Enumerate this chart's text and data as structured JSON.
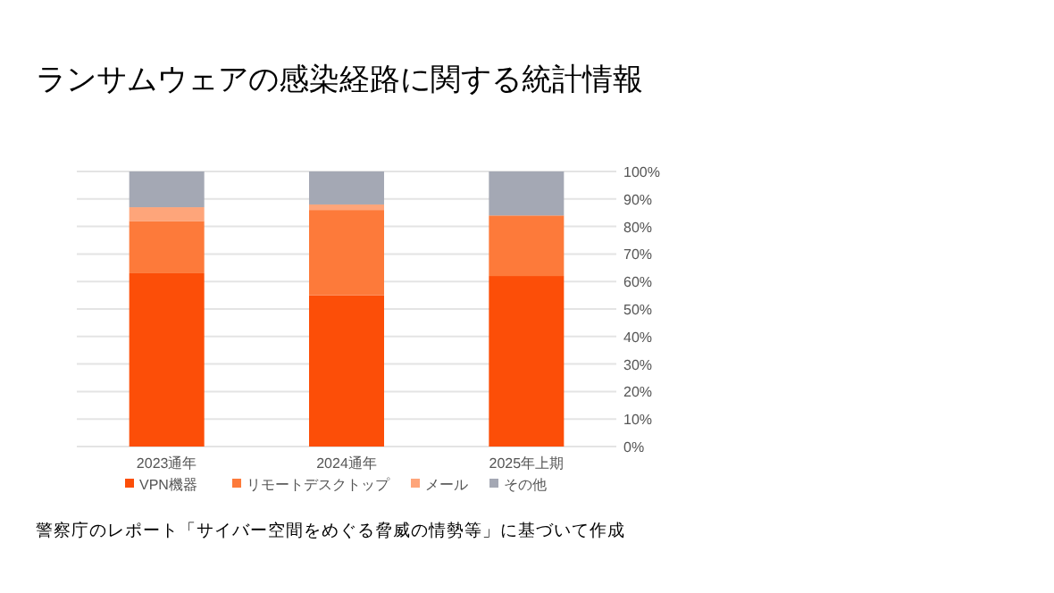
{
  "chart_data": {
    "type": "bar",
    "stacked": true,
    "title": "ランサムウェアの感染経路に関する統計情報",
    "categories": [
      "2023通年",
      "2024通年",
      "2025年上期"
    ],
    "series": [
      {
        "name": "VPN機器",
        "color": "#fc4e08",
        "values": [
          63,
          55,
          62
        ]
      },
      {
        "name": "リモートデスクトップ",
        "color": "#fd7a3a",
        "values": [
          19,
          31,
          22
        ]
      },
      {
        "name": "メール",
        "color": "#fea57a",
        "values": [
          5,
          2,
          0
        ]
      },
      {
        "name": "その他",
        "color": "#a4a8b4",
        "values": [
          13,
          12,
          16
        ]
      }
    ],
    "ylim": [
      0,
      100
    ],
    "yticks": [
      {
        "value": 0,
        "label": "0%"
      },
      {
        "value": 10,
        "label": "10%"
      },
      {
        "value": 20,
        "label": "20%"
      },
      {
        "value": 30,
        "label": "30%"
      },
      {
        "value": 40,
        "label": "40%"
      },
      {
        "value": 50,
        "label": "50%"
      },
      {
        "value": 60,
        "label": "60%"
      },
      {
        "value": 70,
        "label": "70%"
      },
      {
        "value": 80,
        "label": "80%"
      },
      {
        "value": 90,
        "label": "90%"
      },
      {
        "value": 100,
        "label": "100%"
      }
    ],
    "grid": "y",
    "legend": "bottom",
    "annotations": [
      "警察庁のレポート「サイバー空間をめぐる脅威の情勢等」に基づいて作成"
    ]
  }
}
